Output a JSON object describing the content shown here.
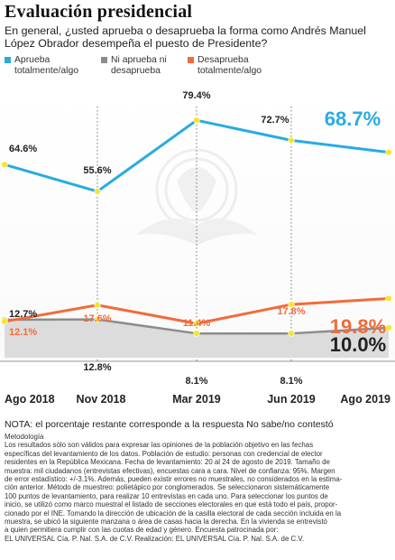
{
  "header": {
    "title": "Evaluación presidencial",
    "subtitle": "En general, ¿usted aprueba o desaprueba la forma como Andrés Manuel López Obrador desempeña el puesto de Presidente?"
  },
  "legend": [
    {
      "label": "Aprueba totalmente/algo",
      "color": "#29abe2"
    },
    {
      "label": "Ni aprueba ni desaprueba",
      "color": "#8c8c8c"
    },
    {
      "label": "Desaprueba totalmente/algo",
      "color": "#f26b3a"
    }
  ],
  "chart_data": {
    "type": "line",
    "x": [
      "Ago 2018",
      "Nov 2018",
      "Mar 2019",
      "Jun 2019",
      "Ago 2019"
    ],
    "x_spacing": "time",
    "series": [
      {
        "name": "Aprueba totalmente/algo",
        "color": "#29abe2",
        "values": [
          64.6,
          55.6,
          79.4,
          72.7,
          68.7
        ],
        "labels": [
          "64.6%",
          "55.6%",
          "79.4%",
          "72.7%",
          "68.7%"
        ]
      },
      {
        "name": "Ni aprueba ni desaprueba",
        "color": "#8c8c8c",
        "values": [
          12.7,
          12.8,
          8.1,
          8.1,
          10.0
        ],
        "labels": [
          "12.7%",
          "12.8%",
          "8.1%",
          "8.1%",
          "10.0%"
        ]
      },
      {
        "name": "Desaprueba totalmente/algo",
        "color": "#f26b3a",
        "values": [
          12.1,
          17.6,
          11.4,
          17.8,
          19.8
        ],
        "labels": [
          "12.1%",
          "17.6%",
          "11.4%",
          "17.8%",
          "19.8%"
        ]
      }
    ],
    "marker_color": "#f5e62a",
    "vertical_gridlines": "dotted",
    "grid": false
  },
  "footer": {
    "note": "NOTA: el porcentaje restante corresponde a la respuesta No sabe/no contestó",
    "method_title": "Metodología",
    "method_lines": [
      "Los resultados sólo son válidos para expresar las opiniones de la población objetivo en las fechas",
      "específicas del levantamiento de los datos. Población de estudio: personas con credencial de elector",
      "residentes en la República Mexicana. Fecha de levantamiento: 20 al 24 de agosto de 2019. Tamaño de",
      "muestra: mil ciudadanos (entrevistas efectivas), encuestas cara a cara. Nivel de confianza: 95%. Margen",
      "de error estadístico: +/-3.1%. Además, pueden existir errores no muestrales, no considerados en la estima-",
      "ción anterior. Método de muestreo: polietápico por conglomerados. Se seleccionaron sistemáticamente",
      "100 puntos de levantamiento, para realizar 10 entrevistas en cada uno. Para seleccionar los puntos de",
      "inicio, se utilizó como marco muestral el listado de secciones electorales en que está todo el país, propor-",
      "cionado por el INE. Tomando la dirección de ubicación de la casilla electoral de cada sección incluida en la",
      "muestra, se ubicó la siguiente manzana o área de casas hacia la derecha. En la vivienda se entrevistó",
      "a quien permitiera cumplir con las cuotas de edad y género. Encuesta patrocinada por:",
      "EL UNIVERSAL Cía. P. Nal. S.A. de C.V. Realización: EL UNIVERSAL Cía. P. Nal. S.A. de C.V."
    ]
  }
}
